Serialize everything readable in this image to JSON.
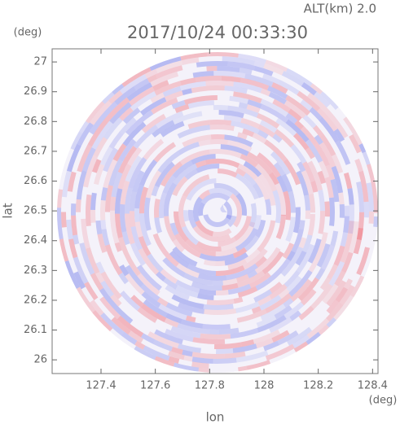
{
  "chart_data": {
    "type": "radar-ppi",
    "title": "2017/10/24 00:33:30",
    "subtitle": "ALT(km) 2.0",
    "x_label": "lon",
    "y_label": "lat",
    "x_unit": "(deg)",
    "y_unit": "(deg)",
    "xlim": [
      127.22,
      128.42
    ],
    "xticks": [
      127.4,
      127.6,
      127.8,
      128.0,
      128.2,
      128.4
    ],
    "ylim": [
      25.954,
      27.044
    ],
    "yticks": [
      26.0,
      26.1,
      26.2,
      26.3,
      26.4,
      26.5,
      26.6,
      26.7,
      26.8,
      26.9,
      27.0
    ]
  }
}
